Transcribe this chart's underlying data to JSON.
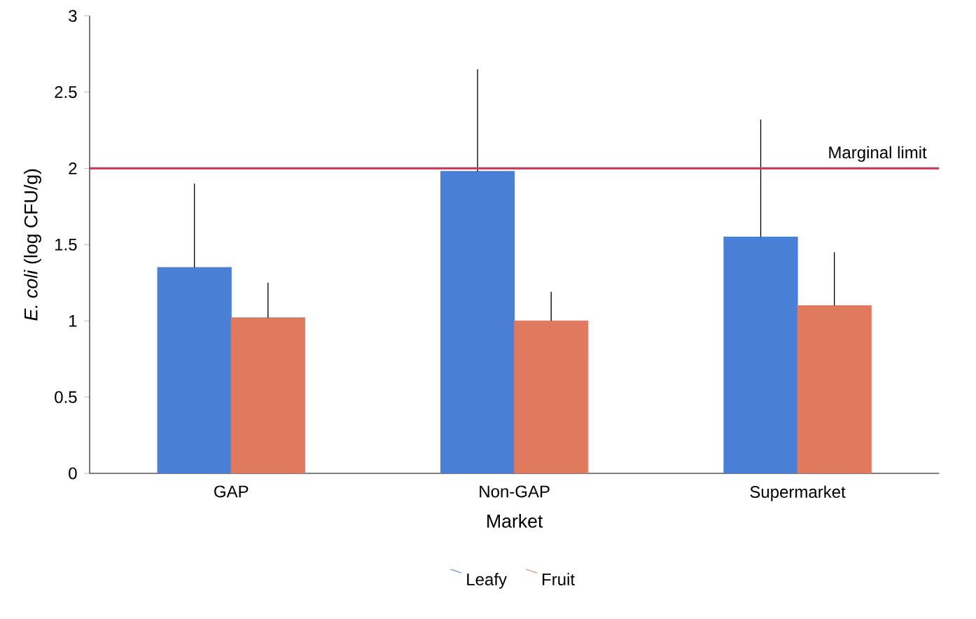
{
  "chart_data": {
    "type": "bar",
    "xlabel": "Market",
    "ylabel": "*E. coli* (log CFU/g)",
    "categories": [
      "GAP",
      "Non-GAP",
      "Supermarket"
    ],
    "series": [
      {
        "name": "Leafy",
        "color": "#4a7fd6",
        "values": [
          1.35,
          1.98,
          1.55
        ],
        "errors": [
          [
            1.35,
            1.9
          ],
          [
            1.98,
            2.65
          ],
          [
            1.55,
            2.32
          ]
        ]
      },
      {
        "name": "Fruit",
        "color": "#e07a5e",
        "values": [
          1.02,
          1.0,
          1.1
        ],
        "errors": [
          [
            1.02,
            1.25
          ],
          [
            1.0,
            1.19
          ],
          [
            1.1,
            1.45
          ]
        ]
      }
    ],
    "ylim": [
      0,
      3
    ],
    "yticks": [
      0,
      0.5,
      1,
      1.5,
      2,
      2.5,
      3
    ],
    "ref_lines": [
      {
        "axis": "y",
        "value": 2,
        "label": "Marginal limit",
        "color": "#d9365a"
      }
    ],
    "legend": "bottom",
    "grid": false
  }
}
